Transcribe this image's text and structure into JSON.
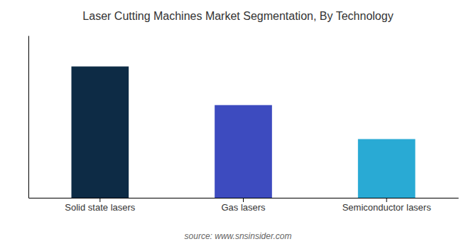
{
  "chart_data": {
    "type": "bar",
    "title": "Laser Cutting Machines Market Segmentation, By Technology",
    "categories": [
      "Solid state lasers",
      "Gas lasers",
      "Semiconductor lasers"
    ],
    "values": [
      0.85,
      0.6,
      0.38
    ],
    "colors": [
      "#0d2b45",
      "#3d4bbf",
      "#29aad4"
    ],
    "ylim": [
      0,
      1.05
    ],
    "yticks": [],
    "grid": false,
    "tick_labels": "x",
    "annotations": [
      "source: www.snsinsider.com"
    ]
  }
}
